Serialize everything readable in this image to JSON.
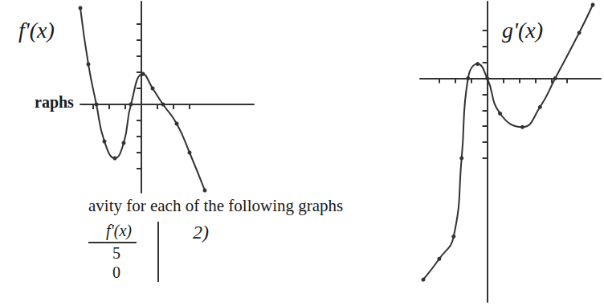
{
  "chart_data": [
    {
      "type": "line",
      "title": "f'(x)",
      "x": [
        -3.8,
        -3.3,
        -2.8,
        -2.3,
        -1.65,
        -1.1,
        -0.65,
        0.1,
        0.7,
        1.35,
        2.2,
        3,
        3.95
      ],
      "values": [
        6,
        2.5,
        0,
        -2.3,
        -3.35,
        -2.4,
        0,
        1.9,
        1,
        0,
        -1.2,
        -3,
        -5.35
      ],
      "xlim": [
        -3.8,
        7
      ],
      "ylim": [
        -5.5,
        6.4
      ],
      "xticks": [
        -3,
        -2,
        -1,
        1,
        2,
        3
      ],
      "yticks": [
        -4,
        -3,
        -2,
        -1,
        1,
        2,
        3,
        4,
        5
      ],
      "tick_labels": false,
      "grid": false,
      "marker": "circle",
      "color": "#333333"
    },
    {
      "type": "line",
      "title": "g'(x)",
      "x": [
        -4,
        -3,
        -2.1,
        -1.6,
        -1.2,
        -0.6,
        0,
        0.8,
        2.2,
        3.3,
        4.25,
        5.75,
        6.6
      ],
      "values": [
        -12.6,
        -11.3,
        -9.9,
        -5,
        0,
        0.9,
        0,
        -2.2,
        -3.05,
        -1.8,
        0,
        2.85,
        4.6
      ],
      "xlim": [
        -4.2,
        7.1
      ],
      "ylim": [
        -14,
        4.8
      ],
      "xticks": [
        -3,
        -2,
        -1,
        1,
        2,
        3,
        4,
        5
      ],
      "yticks": [
        -5,
        -4,
        -3,
        -2,
        -1,
        1,
        2,
        3
      ],
      "tick_labels": false,
      "grid": false,
      "marker": "circle",
      "color": "#333333"
    }
  ],
  "document": {
    "heading": "raphs",
    "instruction": "avity for each of the following graphs",
    "table": {
      "header": "f'(x)",
      "rows": [
        5,
        0
      ]
    },
    "problem": "2)"
  }
}
